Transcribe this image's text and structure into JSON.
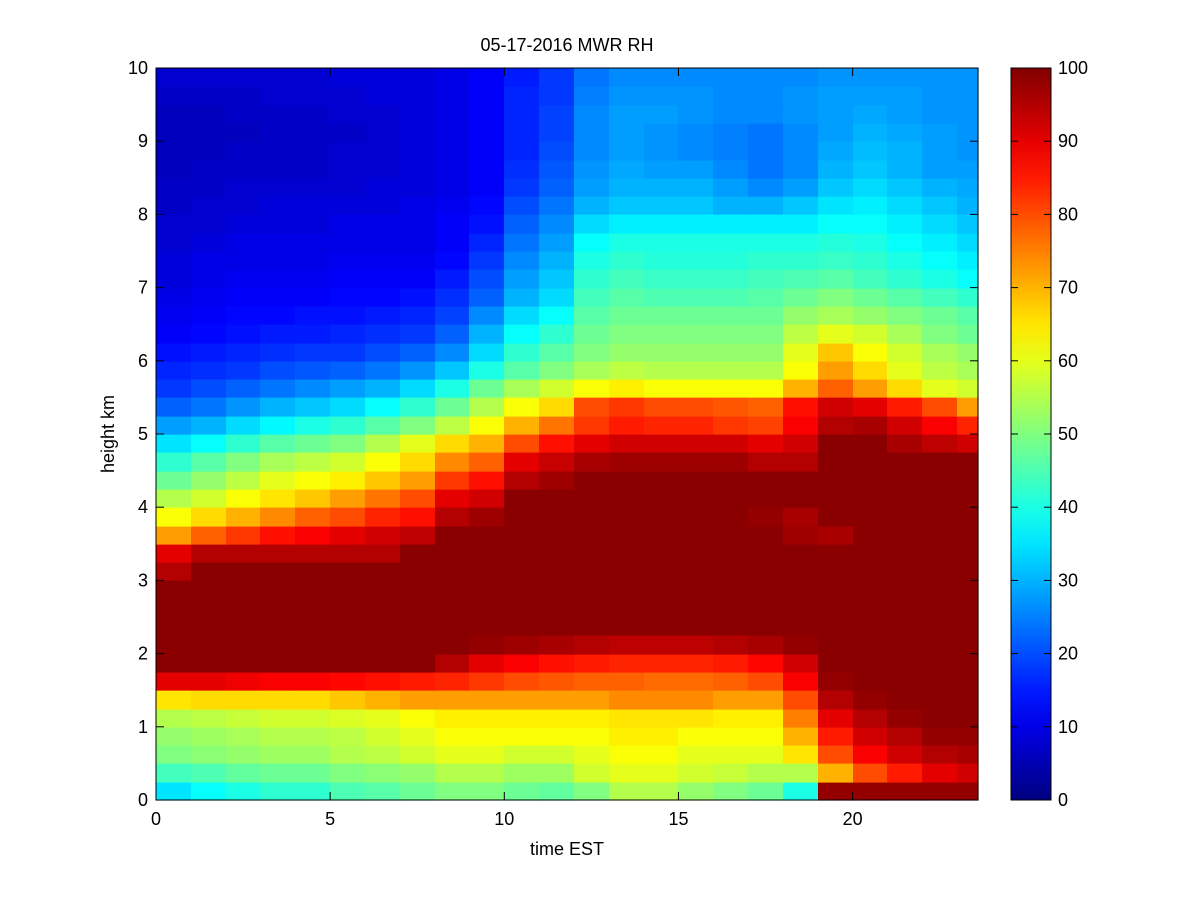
{
  "chart_data": {
    "type": "heatmap",
    "title": "05-17-2016 MWR RH",
    "xlabel": "time EST",
    "ylabel": "height km",
    "xlim": [
      0,
      23.6
    ],
    "ylim": [
      0,
      10
    ],
    "x_ticks": [
      "0",
      "5",
      "10",
      "15",
      "20"
    ],
    "y_ticks": [
      "0",
      "1",
      "2",
      "3",
      "4",
      "5",
      "6",
      "7",
      "8",
      "9",
      "10"
    ],
    "colorbar": {
      "colormap": "jet",
      "range": [
        0,
        100
      ],
      "ticks": [
        "0",
        "10",
        "20",
        "30",
        "40",
        "50",
        "60",
        "70",
        "80",
        "90",
        "100"
      ]
    },
    "grid": false,
    "x": [
      0,
      1,
      2,
      3,
      4,
      5,
      6,
      7,
      8,
      9,
      10,
      11,
      12,
      13,
      14,
      15,
      16,
      17,
      18,
      19,
      20,
      21,
      22,
      23
    ],
    "heights": [
      0,
      0.25,
      0.5,
      0.75,
      1,
      1.25,
      1.5,
      1.75,
      2,
      2.25,
      2.5,
      2.75,
      3,
      3.25,
      3.5,
      3.75,
      4,
      4.25,
      4.5,
      4.75,
      5,
      5.25,
      5.5,
      5.75,
      6,
      6.25,
      6.5,
      6.75,
      7,
      7.25,
      7.5,
      7.75,
      8,
      8.25,
      8.5,
      8.75,
      9,
      9.25,
      9.5,
      9.75
    ],
    "values": [
      [
        35,
        38,
        40,
        42,
        42,
        45,
        46,
        48,
        50,
        50,
        48,
        47,
        50,
        55,
        55,
        52,
        50,
        48,
        40,
        98,
        98,
        98,
        98,
        98
      ],
      [
        44,
        45,
        47,
        48,
        48,
        50,
        51,
        52,
        55,
        55,
        53,
        53,
        58,
        60,
        60,
        58,
        57,
        55,
        55,
        70,
        80,
        85,
        90,
        92
      ],
      [
        50,
        51,
        52,
        53,
        53,
        55,
        56,
        58,
        60,
        60,
        58,
        58,
        60,
        62,
        62,
        60,
        60,
        60,
        65,
        80,
        88,
        92,
        95,
        96
      ],
      [
        52,
        53,
        54,
        55,
        55,
        56,
        58,
        60,
        62,
        62,
        62,
        62,
        62,
        64,
        64,
        62,
        62,
        62,
        70,
        85,
        92,
        95,
        98,
        98
      ],
      [
        55,
        56,
        57,
        58,
        58,
        59,
        60,
        62,
        64,
        64,
        64,
        64,
        64,
        65,
        65,
        65,
        64,
        64,
        75,
        90,
        95,
        98,
        99,
        99
      ],
      [
        65,
        66,
        66,
        66,
        66,
        68,
        70,
        72,
        72,
        72,
        72,
        72,
        72,
        74,
        74,
        74,
        72,
        72,
        80,
        95,
        98,
        99,
        99,
        99
      ],
      [
        90,
        90,
        89,
        88,
        88,
        87,
        86,
        85,
        84,
        82,
        80,
        79,
        78,
        78,
        77,
        77,
        78,
        80,
        88,
        98,
        99,
        99,
        99,
        99
      ],
      [
        99,
        99,
        99,
        99,
        99,
        99,
        99,
        99,
        95,
        90,
        88,
        86,
        85,
        84,
        84,
        84,
        85,
        87,
        92,
        99,
        99,
        99,
        99,
        99
      ],
      [
        99,
        99,
        99,
        99,
        99,
        99,
        99,
        99,
        99,
        98,
        97,
        96,
        95,
        94,
        94,
        94,
        95,
        96,
        98,
        99,
        99,
        99,
        99,
        99
      ],
      [
        99,
        99,
        99,
        99,
        99,
        99,
        99,
        99,
        99,
        99,
        99,
        99,
        99,
        99,
        99,
        99,
        99,
        99,
        99,
        99,
        99,
        99,
        99,
        99
      ],
      [
        99,
        99,
        99,
        99,
        99,
        99,
        99,
        99,
        99,
        99,
        99,
        99,
        99,
        99,
        99,
        99,
        99,
        99,
        99,
        99,
        99,
        99,
        99,
        99
      ],
      [
        99,
        99,
        99,
        99,
        99,
        99,
        99,
        99,
        99,
        99,
        99,
        99,
        99,
        99,
        99,
        99,
        99,
        99,
        99,
        99,
        99,
        99,
        99,
        99
      ],
      [
        95,
        99,
        99,
        99,
        99,
        99,
        99,
        99,
        99,
        99,
        99,
        99,
        99,
        99,
        99,
        99,
        99,
        99,
        99,
        99,
        99,
        99,
        99,
        99
      ],
      [
        90,
        95,
        95,
        95,
        95,
        95,
        95,
        99,
        99,
        99,
        99,
        99,
        99,
        99,
        99,
        99,
        99,
        99,
        99,
        99,
        99,
        99,
        99,
        99
      ],
      [
        72,
        78,
        82,
        86,
        88,
        90,
        92,
        94,
        99,
        99,
        99,
        99,
        99,
        99,
        99,
        99,
        99,
        99,
        97,
        96,
        99,
        99,
        99,
        99
      ],
      [
        62,
        66,
        70,
        74,
        78,
        80,
        84,
        86,
        95,
        97,
        99,
        99,
        99,
        99,
        99,
        99,
        99,
        98,
        96,
        99,
        99,
        99,
        99,
        99
      ],
      [
        55,
        58,
        62,
        65,
        68,
        72,
        76,
        80,
        90,
        92,
        99,
        99,
        99,
        99,
        99,
        99,
        99,
        99,
        99,
        99,
        99,
        99,
        99,
        99
      ],
      [
        48,
        52,
        56,
        60,
        62,
        64,
        68,
        72,
        82,
        86,
        95,
        97,
        99,
        99,
        99,
        99,
        99,
        99,
        99,
        99,
        99,
        99,
        99,
        99
      ],
      [
        42,
        46,
        50,
        54,
        56,
        58,
        62,
        66,
        74,
        78,
        90,
        93,
        96,
        97,
        97,
        97,
        97,
        95,
        95,
        99,
        99,
        99,
        99,
        99
      ],
      [
        35,
        38,
        42,
        46,
        48,
        50,
        55,
        60,
        66,
        70,
        80,
        86,
        90,
        92,
        92,
        92,
        92,
        90,
        92,
        99,
        99,
        96,
        94,
        92
      ],
      [
        28,
        30,
        34,
        37,
        40,
        42,
        46,
        50,
        56,
        62,
        70,
        76,
        82,
        85,
        84,
        84,
        82,
        81,
        88,
        95,
        96,
        92,
        88,
        84
      ],
      [
        22,
        24,
        27,
        30,
        32,
        34,
        38,
        42,
        48,
        55,
        62,
        66,
        80,
        82,
        80,
        80,
        79,
        78,
        86,
        92,
        90,
        85,
        80,
        72
      ],
      [
        18,
        20,
        22,
        24,
        26,
        28,
        30,
        34,
        40,
        48,
        54,
        58,
        62,
        64,
        62,
        62,
        62,
        62,
        70,
        78,
        72,
        66,
        60,
        58
      ],
      [
        16,
        17,
        18,
        20,
        21,
        22,
        24,
        27,
        32,
        40,
        46,
        50,
        54,
        56,
        55,
        55,
        55,
        55,
        62,
        72,
        66,
        60,
        56,
        54
      ],
      [
        14,
        15,
        16,
        17,
        18,
        18,
        20,
        22,
        26,
        34,
        42,
        46,
        50,
        52,
        52,
        52,
        52,
        52,
        60,
        68,
        62,
        58,
        54,
        52
      ],
      [
        12,
        13,
        14,
        15,
        15,
        16,
        17,
        18,
        22,
        30,
        38,
        42,
        48,
        50,
        50,
        50,
        50,
        50,
        56,
        60,
        58,
        54,
        50,
        48
      ],
      [
        11,
        12,
        13,
        13,
        14,
        14,
        15,
        16,
        19,
        26,
        34,
        38,
        46,
        48,
        48,
        48,
        48,
        48,
        52,
        54,
        52,
        50,
        48,
        46
      ],
      [
        10,
        11,
        12,
        12,
        12,
        13,
        13,
        14,
        17,
        22,
        30,
        34,
        44,
        46,
        45,
        45,
        45,
        46,
        48,
        50,
        48,
        46,
        44,
        42
      ],
      [
        9,
        10,
        11,
        11,
        11,
        12,
        12,
        12,
        15,
        20,
        28,
        32,
        42,
        44,
        43,
        43,
        43,
        44,
        45,
        46,
        44,
        42,
        40,
        38
      ],
      [
        9,
        10,
        10,
        10,
        10,
        11,
        11,
        11,
        13,
        18,
        26,
        30,
        40,
        42,
        41,
        41,
        41,
        42,
        42,
        43,
        42,
        40,
        38,
        36
      ],
      [
        8,
        9,
        10,
        10,
        10,
        10,
        10,
        10,
        12,
        16,
        24,
        28,
        38,
        40,
        40,
        40,
        40,
        40,
        40,
        41,
        40,
        38,
        36,
        34
      ],
      [
        8,
        8,
        9,
        9,
        9,
        10,
        10,
        10,
        12,
        14,
        22,
        26,
        34,
        36,
        36,
        36,
        36,
        36,
        36,
        38,
        38,
        36,
        34,
        32
      ],
      [
        7,
        8,
        8,
        9,
        9,
        9,
        9,
        10,
        11,
        13,
        20,
        24,
        30,
        32,
        32,
        32,
        30,
        30,
        32,
        35,
        36,
        34,
        32,
        30
      ],
      [
        7,
        7,
        8,
        8,
        8,
        8,
        9,
        9,
        10,
        12,
        18,
        22,
        28,
        30,
        30,
        30,
        28,
        26,
        28,
        32,
        34,
        32,
        30,
        29
      ],
      [
        6,
        7,
        7,
        7,
        7,
        8,
        8,
        9,
        10,
        12,
        17,
        21,
        27,
        29,
        28,
        28,
        26,
        24,
        26,
        30,
        32,
        30,
        28,
        28
      ],
      [
        6,
        6,
        7,
        7,
        7,
        8,
        8,
        9,
        10,
        12,
        16,
        20,
        26,
        28,
        27,
        26,
        25,
        24,
        26,
        29,
        31,
        30,
        28,
        27
      ],
      [
        6,
        6,
        6,
        7,
        7,
        7,
        8,
        9,
        10,
        12,
        16,
        19,
        26,
        28,
        27,
        26,
        25,
        24,
        26,
        28,
        30,
        29,
        28,
        27
      ],
      [
        6,
        6,
        7,
        7,
        7,
        8,
        8,
        9,
        10,
        12,
        16,
        19,
        26,
        28,
        28,
        27,
        26,
        26,
        27,
        28,
        29,
        28,
        27,
        27
      ],
      [
        7,
        7,
        7,
        8,
        8,
        8,
        9,
        9,
        10,
        12,
        16,
        18,
        25,
        27,
        27,
        27,
        26,
        26,
        27,
        28,
        28,
        28,
        27,
        27
      ],
      [
        8,
        8,
        8,
        8,
        8,
        9,
        9,
        9,
        10,
        12,
        15,
        18,
        24,
        26,
        26,
        26,
        26,
        26,
        26,
        27,
        27,
        27,
        27,
        27
      ]
    ]
  }
}
